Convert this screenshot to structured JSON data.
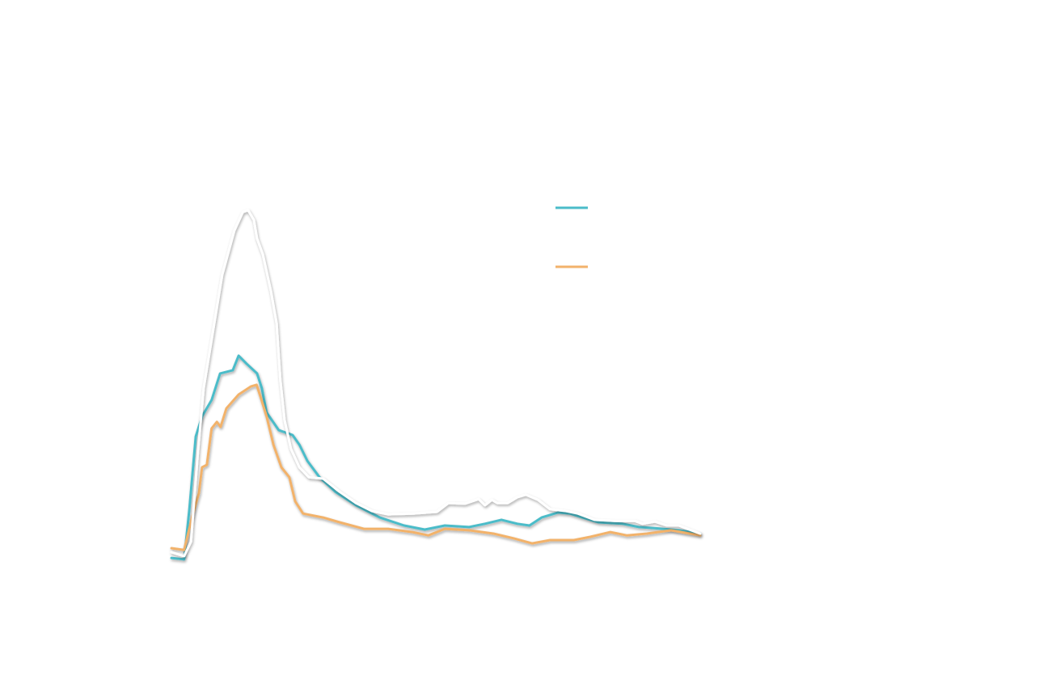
{
  "chart_data": {
    "type": "line",
    "xlim": [
      0,
      100
    ],
    "ylim": [
      0,
      100
    ],
    "series": [
      {
        "color": "#4bbcc9",
        "x": [
          0,
          2.4,
          3.4,
          4.6,
          5.8,
          7.6,
          9.2,
          11.6,
          12.7,
          14.2,
          16.2,
          17.1,
          18.0,
          20.3,
          22.9,
          24.2,
          25.7,
          28.0,
          31.0,
          34.9,
          39.4,
          44.0,
          47.9,
          51.7,
          56.3,
          59.3,
          62.4,
          65.4,
          67.7,
          70.0,
          73.1,
          75.4,
          77.7,
          80.7,
          85.3,
          88.4,
          91.4,
          96.0,
          100
        ],
        "values": [
          2.2,
          1.8,
          15.6,
          35.6,
          41.1,
          45.6,
          52.9,
          53.8,
          57.8,
          55.6,
          52.9,
          48.9,
          42.2,
          37.3,
          36,
          33.3,
          28.9,
          24.4,
          20.4,
          16.7,
          13.3,
          11.1,
          10,
          11.1,
          10.7,
          11.6,
          12.7,
          11.6,
          11.1,
          13.3,
          14.7,
          14.4,
          13.3,
          12,
          11.6,
          10.7,
          10.4,
          9.8,
          8.9
        ]
      },
      {
        "color": "#f2b26b",
        "x": [
          0,
          2.4,
          3.9,
          5.2,
          5.8,
          6.7,
          7.6,
          8.6,
          9.3,
          10.4,
          12.7,
          15.0,
          16.1,
          16.8,
          18.0,
          19.3,
          20.8,
          22.3,
          23.4,
          24.9,
          28.7,
          31.8,
          36.4,
          41.0,
          45.6,
          48.6,
          51.7,
          56.3,
          60.9,
          64.7,
          68.2,
          71.6,
          76.1,
          79.2,
          83.0,
          86.1,
          89.9,
          94.5,
          100
        ],
        "values": [
          4.9,
          4.4,
          13.3,
          20,
          27.1,
          27.8,
          37.8,
          39.6,
          38.2,
          43.3,
          47.1,
          49.3,
          49.8,
          46.7,
          41.1,
          33.3,
          27.1,
          24.4,
          17.8,
          14.4,
          13.3,
          12,
          10.2,
          10.2,
          9.3,
          8.4,
          10.2,
          9.8,
          8.9,
          7.6,
          6.2,
          7.1,
          7.1,
          8,
          9.3,
          8.4,
          8.9,
          9.8,
          8.4
        ]
      },
      {
        "color": "#ffffff",
        "x": [
          0,
          2.4,
          3.7,
          5.0,
          6.1,
          7.6,
          9.6,
          11.9,
          13.5,
          14.5,
          15.6,
          16.2,
          17.3,
          18.8,
          19.9,
          20.6,
          21.4,
          22.6,
          24.2,
          26.0,
          28.7,
          31.8,
          34.9,
          37.9,
          41.0,
          45.6,
          50.2,
          52.4,
          55.5,
          58.1,
          59.3,
          60.6,
          61.6,
          63.6,
          65.4,
          67.0,
          69.3,
          71.6,
          74.6,
          76.9,
          80.0,
          83.8,
          87.6,
          89.1,
          91.4,
          93.7,
          96.0,
          98.3,
          100
        ],
        "values": [
          3.8,
          2.7,
          6.7,
          31.1,
          48.9,
          62.2,
          80,
          92.2,
          97.3,
          97.8,
          95.1,
          90,
          85.6,
          75.6,
          66.7,
          51.1,
          40,
          32.2,
          27.1,
          24.4,
          24,
          20.4,
          17.3,
          15.1,
          14.2,
          14.4,
          14.9,
          17.3,
          17.1,
          18.4,
          16.7,
          18.2,
          17.3,
          17.3,
          18.9,
          19.6,
          18.2,
          15.6,
          15.1,
          14.4,
          12.7,
          12.4,
          12.4,
          11.6,
          12.2,
          11.1,
          11.1,
          9.8,
          8.9
        ]
      }
    ]
  }
}
